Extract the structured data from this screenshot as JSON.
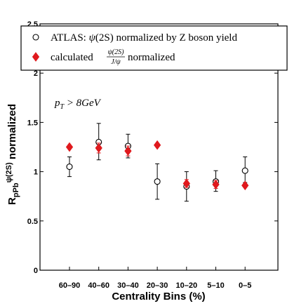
{
  "chart_data": {
    "type": "scatter",
    "xlabel": "Centrality Bins (%)",
    "ylabel": "R_pPb ψ(2S) normalized",
    "ylabel_parts": {
      "main": "R",
      "sub": "pPb",
      "sup": "ψ(2S)",
      "tail": " normalized"
    },
    "categories": [
      "60–90",
      "40–60",
      "30–40",
      "20–30",
      "10–20",
      "5–10",
      "0–5"
    ],
    "ylim": [
      0,
      2.5
    ],
    "yticks": [
      "0",
      "0.5",
      "1",
      "1.5",
      "2",
      "2.5"
    ],
    "grid": false,
    "legend_position": "top",
    "annotation": "p_T > 8GeV",
    "annotation_parts": {
      "main": "p",
      "sub": "T",
      "rest": " > 8GeV"
    },
    "series": [
      {
        "name": "ATLAS: ψ(2S) normalized by Z boson yield",
        "legend_parts": {
          "prefix": "ATLAS: ",
          "math": "ψ",
          "suffix": "(2S) normalized by Z boson yield"
        },
        "marker": "open-circle",
        "color": "#000000",
        "values": [
          1.05,
          1.3,
          1.26,
          0.9,
          0.85,
          0.9,
          1.01
        ],
        "err_low": [
          0.1,
          0.18,
          0.12,
          0.18,
          0.15,
          0.1,
          0.12
        ],
        "err_high": [
          0.1,
          0.19,
          0.12,
          0.18,
          0.15,
          0.11,
          0.14
        ]
      },
      {
        "name": "calculated ψ(2S)/J/ψ normalized",
        "legend_parts": {
          "prefix": "calculated ",
          "num": "ψ(2S)",
          "den": "J/ψ",
          "suffix": " normalized"
        },
        "marker": "filled-diamond",
        "color": "#e0191d",
        "values": [
          1.25,
          1.24,
          1.21,
          1.27,
          0.88,
          0.87,
          0.86
        ],
        "err_low": [
          0.0,
          0.05,
          0.05,
          0.0,
          0.04,
          0.04,
          0.0
        ],
        "err_high": [
          0.0,
          0.05,
          0.05,
          0.0,
          0.04,
          0.04,
          0.0
        ]
      }
    ]
  }
}
